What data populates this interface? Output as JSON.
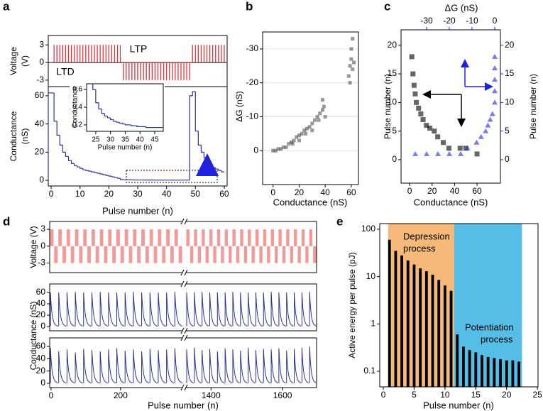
{
  "chart_data": [
    {
      "type": "pulse",
      "panel": "a",
      "ylabel_lines": [
        "Voltage",
        "(V)"
      ],
      "labels": [
        "LTP",
        "LTD"
      ],
      "xlim": [
        -1,
        61
      ],
      "ylim": [
        -4.1,
        4.6
      ],
      "yticks": [
        -3,
        0,
        3
      ],
      "color": "#e0303a",
      "trains": [
        {
          "start": 1,
          "end": 24,
          "value": 3
        },
        {
          "start": 25,
          "end": 48,
          "value": -3
        },
        {
          "start": 49,
          "end": 60,
          "value": 3
        }
      ]
    },
    {
      "type": "step",
      "ylabel_lines": [
        "Conductance",
        "(nS)"
      ],
      "xlabel": "Pulse number (n)",
      "color": "#2e3192",
      "xlim": [
        -1,
        61
      ],
      "ylim": [
        -4,
        66.5
      ],
      "xticks": [
        0,
        10,
        20,
        30,
        40,
        50,
        60
      ],
      "yticks": [
        0,
        20,
        40,
        60
      ],
      "x": [
        1,
        2,
        3,
        4,
        5,
        6,
        7,
        8,
        9,
        10,
        11,
        12,
        13,
        14,
        15,
        16,
        17,
        18,
        19,
        20,
        21,
        22,
        23,
        24,
        25,
        26,
        27,
        28,
        29,
        30,
        31,
        32,
        33,
        34,
        35,
        36,
        37,
        38,
        39,
        40,
        41,
        42,
        43,
        44,
        45,
        46,
        47,
        48,
        49,
        50,
        51,
        52,
        53,
        54,
        55,
        56,
        57,
        58,
        59,
        60
      ],
      "values": [
        62,
        42,
        32,
        25,
        20,
        17,
        14,
        12,
        10.5,
        9.5,
        8.5,
        7.5,
        7,
        6.5,
        6,
        5.5,
        5,
        4.5,
        4,
        3.5,
        3,
        2.5,
        2,
        1.5,
        0.6,
        0.45,
        0.38,
        0.33,
        0.3,
        0.28,
        0.26,
        0.24,
        0.23,
        0.22,
        0.21,
        0.2,
        0.2,
        0.19,
        0.19,
        0.18,
        0.18,
        0.18,
        0.17,
        0.17,
        0.17,
        0.17,
        0.17,
        0.17,
        60,
        63,
        35,
        25,
        20,
        16,
        13,
        11,
        9,
        8,
        7,
        6
      ],
      "inset": {
        "ylabel": "Conductance",
        "xlabel": "Pulse number (n)",
        "xlim": [
          21.9,
          47.9
        ],
        "ylim": [
          0.127,
          0.665
        ],
        "xticks": [
          25,
          30,
          35,
          40,
          45
        ],
        "yticks": [
          0.2,
          0.4,
          0.6
        ]
      }
    },
    {
      "type": "scatter",
      "panel": "b",
      "xlabel": "Conductance (nS)",
      "ylabel": "ΔG (nS)",
      "color": "#444444",
      "grid": true,
      "xlim": [
        -8,
        65.5
      ],
      "ylim": [
        10,
        -35
      ],
      "xticks": [
        0,
        20,
        40,
        60
      ],
      "yticks": [
        0,
        -10,
        -20,
        -30
      ],
      "x": [
        0,
        2,
        4,
        6,
        8,
        10,
        12,
        14,
        16,
        18,
        20,
        22,
        24,
        26,
        28,
        30,
        32,
        34,
        36,
        38,
        39,
        40,
        25,
        30,
        35,
        20,
        15,
        38,
        58,
        59,
        60,
        61,
        60,
        62,
        59,
        61
      ],
      "y": [
        0,
        0,
        -0.5,
        -0.5,
        -1,
        -1,
        -2,
        -2.5,
        -3,
        -4,
        -4.5,
        -5,
        -6,
        -6.5,
        -7,
        -8,
        -9,
        -10,
        -11,
        -12,
        -13,
        -10,
        -5,
        -6,
        -9,
        -3,
        -2,
        -15,
        -22,
        -25,
        -27,
        -24,
        -30,
        -26,
        -20,
        -33
      ]
    },
    {
      "type": "dual-scatter",
      "panel": "c",
      "xlabel": "Conductance (nS)",
      "ylabel": "Pulse number (n)",
      "x2label": "ΔG (nS)",
      "y2label": "Pulse number (n)",
      "xlim": [
        -7.6,
        80.8
      ],
      "xticks": [
        0,
        20,
        40,
        60
      ],
      "x2lim": [
        -41.25,
        2.5
      ],
      "x2ticks": [
        -30,
        -20,
        -10,
        0
      ],
      "ylim": [
        -4.1,
        22.7
      ],
      "yticks": [
        0,
        5,
        10,
        15,
        20
      ],
      "y2lim": [
        -4.1,
        22.7
      ],
      "y2ticks": [
        0,
        5,
        10,
        15,
        20
      ],
      "axis_color": "#1f1fe6",
      "series": [
        {
          "color": "#000000",
          "x": [
            2,
            3,
            4,
            5,
            6,
            8,
            10,
            12,
            15,
            18,
            22,
            25,
            30,
            35,
            45,
            50,
            60
          ],
          "y": [
            18,
            15,
            13,
            11.5,
            10,
            9,
            8,
            7,
            6,
            5.5,
            5,
            4,
            3,
            2,
            2,
            2,
            1
          ]
        },
        {
          "color": "#1f1fe6",
          "axis": "y2",
          "x": [
            -35,
            -30,
            -25,
            -20,
            -15,
            -12,
            -8,
            -6,
            -4,
            -3,
            -2,
            -1,
            0,
            0,
            0,
            0,
            0
          ],
          "y": [
            1,
            1,
            1,
            1,
            1,
            2,
            3,
            4,
            5,
            6,
            7,
            8,
            10,
            12,
            14,
            16,
            18
          ]
        }
      ]
    },
    {
      "type": "cycles",
      "panel": "d",
      "xlabel": "Pulse number (n)",
      "ylabels": [
        "Voltage (V)",
        "Conductance (nS)"
      ],
      "pulse_color": "#f19a9a",
      "trace_color": "#2e3192",
      "segments": [
        {
          "xlim": [
            -4,
            378
          ],
          "xticks": [
            0,
            200
          ]
        },
        {
          "xlim": [
            1330,
            1695
          ],
          "xticks": [
            1400,
            1600
          ]
        }
      ],
      "rows": [
        {
          "ylim": [
            -4.7,
            4.4
          ],
          "yticks": [
            -3,
            0,
            3
          ],
          "pulse_values": [
            3,
            -3
          ]
        },
        {
          "ylim": [
            -7.5,
            75
          ],
          "yticks": [
            0,
            20,
            40,
            60
          ],
          "peaks": [
            [
              60,
              60,
              60,
              61,
              60,
              60,
              61,
              60,
              60,
              60,
              61,
              60,
              60,
              60,
              60,
              61
            ],
            [
              60,
              60,
              61,
              60,
              60,
              60,
              61,
              60,
              60,
              60,
              60,
              61,
              60,
              60,
              60,
              60,
              61
            ]
          ]
        },
        {
          "ylim": [
            -6.9,
            73.8
          ],
          "yticks": [
            0,
            20,
            40,
            60
          ],
          "peaks": [
            [
              58,
              52,
              55,
              50,
              56,
              54,
              52,
              55,
              57,
              53,
              55,
              52,
              56,
              54,
              55,
              57
            ],
            [
              55,
              58,
              54,
              56,
              52,
              57,
              55,
              53,
              58,
              54,
              56,
              55,
              57,
              53,
              56,
              58,
              60
            ]
          ]
        }
      ]
    },
    {
      "type": "bar",
      "panel": "e",
      "log": true,
      "xlabel": "Pulse number (n)",
      "ylabel": "Active energy per pulse (pJ)",
      "color": "#000000",
      "xlim": [
        -0.58,
        25.1
      ],
      "ylim": [
        0.0468,
        131.8
      ],
      "xticks": [
        0,
        5,
        10,
        15,
        20,
        25
      ],
      "yticks": [
        0.1,
        1,
        10,
        100
      ],
      "regions": [
        {
          "lines": [
            "Depression",
            "process"
          ],
          "x": [
            0.8,
            11.5
          ],
          "color": "#f7b978"
        },
        {
          "lines": [
            "Potentiation",
            "process"
          ],
          "x": [
            11.5,
            22.5
          ],
          "color": "#55bde6"
        }
      ],
      "x": [
        1,
        2,
        3,
        4,
        5,
        6,
        7,
        8,
        9,
        10,
        11,
        12,
        13,
        14,
        15,
        16,
        17,
        18,
        19,
        20,
        21,
        22
      ],
      "values": [
        60,
        35,
        28,
        22,
        18,
        15,
        13,
        11,
        8.5,
        6.5,
        5,
        0.6,
        0.33,
        0.28,
        0.25,
        0.22,
        0.2,
        0.19,
        0.18,
        0.17,
        0.17,
        0.16
      ]
    }
  ]
}
